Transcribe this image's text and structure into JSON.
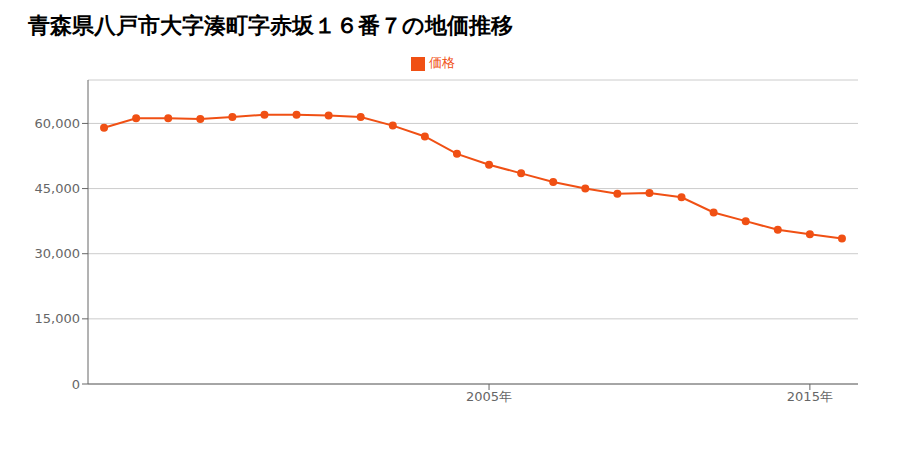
{
  "chart_data": {
    "type": "line",
    "title": "青森県八戸市大字湊町字赤坂１６番７の地価推移",
    "x": [
      1993,
      1994,
      1995,
      1996,
      1997,
      1998,
      1999,
      2000,
      2001,
      2002,
      2003,
      2004,
      2005,
      2006,
      2007,
      2008,
      2009,
      2010,
      2011,
      2012,
      2013,
      2014,
      2015,
      2016
    ],
    "series": [
      {
        "name": "価格",
        "color": "#f05014",
        "marker": "circle",
        "values": [
          59000,
          61200,
          61200,
          61000,
          61500,
          62000,
          62000,
          61800,
          61500,
          59500,
          57000,
          53000,
          50500,
          48500,
          46500,
          45000,
          43800,
          44000,
          43000,
          39500,
          37500,
          35500,
          34500,
          33500
        ]
      }
    ],
    "xlim": [
      1992.5,
      2016.5
    ],
    "xticks": [
      {
        "value": 2005,
        "label": "2005年"
      },
      {
        "value": 2015,
        "label": "2015年"
      }
    ],
    "ylim": [
      0,
      70000
    ],
    "yticks": [
      0,
      {
        "value": 15000,
        "label": "15,000"
      },
      {
        "value": 30000,
        "label": "30,000"
      },
      {
        "value": 45000,
        "label": "45,000"
      },
      {
        "value": 60000,
        "label": "60,000"
      }
    ],
    "grid": "y",
    "legend": "top"
  }
}
